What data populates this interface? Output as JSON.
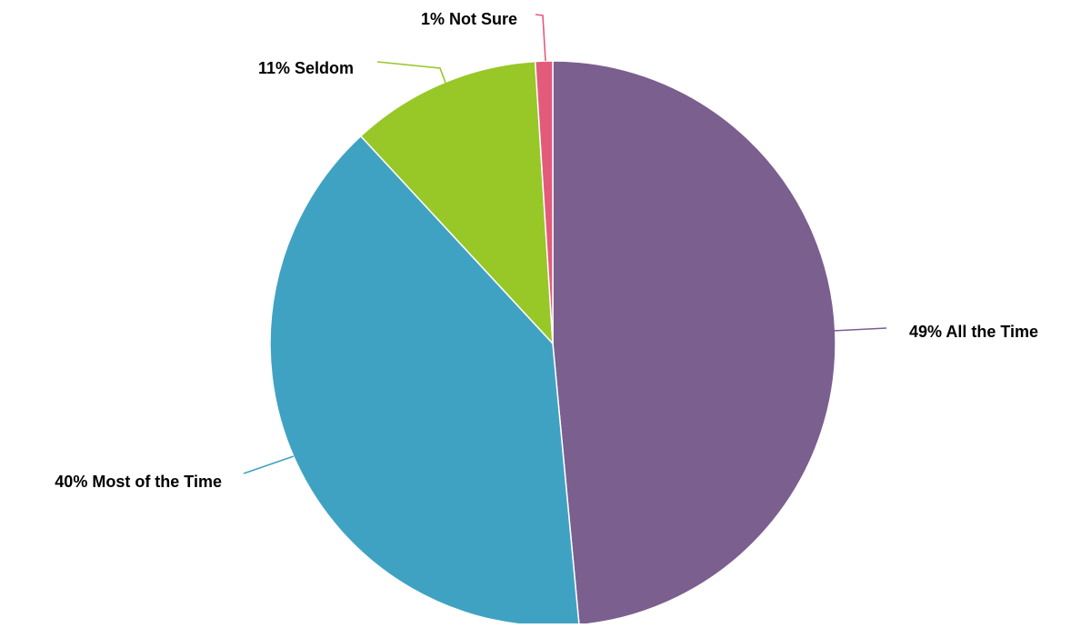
{
  "chart_data": {
    "type": "pie",
    "title": "",
    "slices": [
      {
        "label": "49% All the Time",
        "category": "All the Time",
        "value": 49,
        "color": "#7b5f8f"
      },
      {
        "label": "40% Most of the Time",
        "category": "Most of the Time",
        "value": 40,
        "color": "#40a2c2"
      },
      {
        "label": "11% Seldom",
        "category": "Seldom",
        "value": 11,
        "color": "#98c728"
      },
      {
        "label": "1% Not Sure",
        "category": "Not Sure",
        "value": 1,
        "color": "#e35b7b"
      }
    ],
    "start": "12 o'clock",
    "direction": "clockwise",
    "legend": "none",
    "labels": "outside with leader lines"
  }
}
